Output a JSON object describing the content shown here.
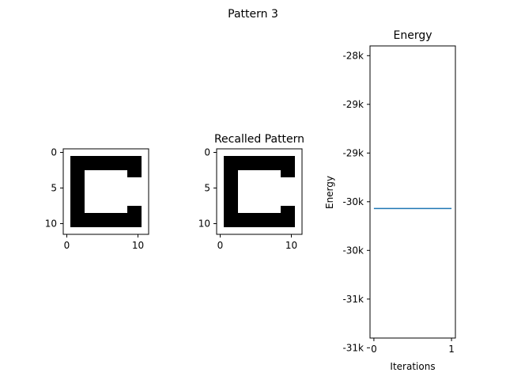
{
  "figure": {
    "suptitle": "Pattern 3"
  },
  "chart_data": [
    {
      "type": "heatmap",
      "title": "",
      "xticks": [
        0,
        10
      ],
      "yticks": [
        0,
        5,
        10
      ],
      "grid_size": [
        12,
        12
      ],
      "colors": {
        "on": "#000000",
        "off": "#ffffff"
      },
      "matrix": [
        [
          0,
          0,
          0,
          0,
          0,
          0,
          0,
          0,
          0,
          0,
          0,
          0
        ],
        [
          0,
          1,
          1,
          1,
          1,
          1,
          1,
          1,
          1,
          1,
          1,
          0
        ],
        [
          0,
          1,
          1,
          1,
          1,
          1,
          1,
          1,
          1,
          1,
          1,
          0
        ],
        [
          0,
          1,
          1,
          0,
          0,
          0,
          0,
          0,
          0,
          1,
          1,
          0
        ],
        [
          0,
          1,
          1,
          0,
          0,
          0,
          0,
          0,
          0,
          0,
          0,
          0
        ],
        [
          0,
          1,
          1,
          0,
          0,
          0,
          0,
          0,
          0,
          0,
          0,
          0
        ],
        [
          0,
          1,
          1,
          0,
          0,
          0,
          0,
          0,
          0,
          0,
          0,
          0
        ],
        [
          0,
          1,
          1,
          0,
          0,
          0,
          0,
          0,
          0,
          0,
          0,
          0
        ],
        [
          0,
          1,
          1,
          0,
          0,
          0,
          0,
          0,
          0,
          1,
          1,
          0
        ],
        [
          0,
          1,
          1,
          1,
          1,
          1,
          1,
          1,
          1,
          1,
          1,
          0
        ],
        [
          0,
          1,
          1,
          1,
          1,
          1,
          1,
          1,
          1,
          1,
          1,
          0
        ],
        [
          0,
          0,
          0,
          0,
          0,
          0,
          0,
          0,
          0,
          0,
          0,
          0
        ]
      ]
    },
    {
      "type": "heatmap",
      "title": "Recalled Pattern",
      "xticks": [
        0,
        10
      ],
      "yticks": [
        0,
        5,
        10
      ],
      "grid_size": [
        12,
        12
      ],
      "colors": {
        "on": "#000000",
        "off": "#ffffff"
      },
      "matrix": [
        [
          0,
          0,
          0,
          0,
          0,
          0,
          0,
          0,
          0,
          0,
          0,
          0
        ],
        [
          0,
          1,
          1,
          1,
          1,
          1,
          1,
          1,
          1,
          1,
          1,
          0
        ],
        [
          0,
          1,
          1,
          1,
          1,
          1,
          1,
          1,
          1,
          1,
          1,
          0
        ],
        [
          0,
          1,
          1,
          0,
          0,
          0,
          0,
          0,
          0,
          1,
          1,
          0
        ],
        [
          0,
          1,
          1,
          0,
          0,
          0,
          0,
          0,
          0,
          0,
          0,
          0
        ],
        [
          0,
          1,
          1,
          0,
          0,
          0,
          0,
          0,
          0,
          0,
          0,
          0
        ],
        [
          0,
          1,
          1,
          0,
          0,
          0,
          0,
          0,
          0,
          0,
          0,
          0
        ],
        [
          0,
          1,
          1,
          0,
          0,
          0,
          0,
          0,
          0,
          0,
          0,
          0
        ],
        [
          0,
          1,
          1,
          0,
          0,
          0,
          0,
          0,
          0,
          1,
          1,
          0
        ],
        [
          0,
          1,
          1,
          1,
          1,
          1,
          1,
          1,
          1,
          1,
          1,
          0
        ],
        [
          0,
          1,
          1,
          1,
          1,
          1,
          1,
          1,
          1,
          1,
          1,
          0
        ],
        [
          0,
          0,
          0,
          0,
          0,
          0,
          0,
          0,
          0,
          0,
          0,
          0
        ]
      ]
    },
    {
      "type": "line",
      "title": "Energy",
      "xlabel": "Iterations",
      "ylabel": "Energy",
      "xlim": [
        -0.05,
        1.05
      ],
      "ylim": [
        -31150,
        -28150
      ],
      "xticks": [
        0,
        1
      ],
      "yticks": [
        {
          "value": -28250,
          "label": "-28k"
        },
        {
          "value": -28750,
          "label": "-29k"
        },
        {
          "value": -29250,
          "label": "-29k"
        },
        {
          "value": -29750,
          "label": "-30k"
        },
        {
          "value": -30250,
          "label": "-30k"
        },
        {
          "value": -30750,
          "label": "-31k"
        },
        {
          "value": -31250,
          "label": "-31k"
        }
      ],
      "series": [
        {
          "x": [
            0,
            1
          ],
          "y": [
            -29820,
            -29820
          ],
          "color": "#1f77b4"
        }
      ]
    }
  ]
}
